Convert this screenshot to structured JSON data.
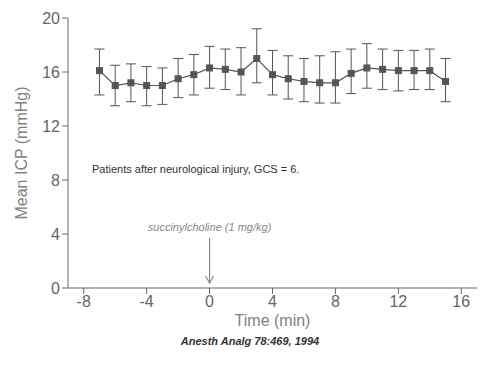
{
  "chart_data": {
    "type": "line",
    "x": [
      -7,
      -6,
      -5,
      -4,
      -3,
      -2,
      -1,
      0,
      1,
      2,
      3,
      4,
      5,
      6,
      7,
      8,
      9,
      10,
      11,
      12,
      13,
      14,
      15
    ],
    "values": [
      16.1,
      15.0,
      15.2,
      15.0,
      15.0,
      15.5,
      15.8,
      16.3,
      16.2,
      16.0,
      17.0,
      15.8,
      15.5,
      15.3,
      15.2,
      15.2,
      15.9,
      16.3,
      16.2,
      16.1,
      16.1,
      16.1,
      15.3
    ],
    "error_upper": [
      1.6,
      1.5,
      1.4,
      1.4,
      1.3,
      1.5,
      1.5,
      1.6,
      1.5,
      1.8,
      2.2,
      1.8,
      1.7,
      1.7,
      2.0,
      2.3,
      1.8,
      1.8,
      1.5,
      1.5,
      1.5,
      1.6,
      1.7
    ],
    "error_lower": [
      1.8,
      1.5,
      1.4,
      1.5,
      1.4,
      1.4,
      1.5,
      1.5,
      1.5,
      1.7,
      1.8,
      1.5,
      1.5,
      1.5,
      1.5,
      1.5,
      1.5,
      1.5,
      1.5,
      1.5,
      1.4,
      1.4,
      1.5
    ],
    "color": "#555555",
    "marker": "square",
    "line_style": "solid",
    "xlabel": "Time (min)",
    "ylabel": "Mean ICP (mmHg)",
    "xlim": [
      -9,
      17
    ],
    "ylim": [
      0,
      20
    ],
    "xticks": [
      -8,
      -4,
      0,
      4,
      8,
      12,
      16
    ],
    "yticks": [
      0,
      4,
      8,
      12,
      16,
      20
    ],
    "grid": false,
    "annotations": [
      {
        "text": "succinylcholine (1 mg/kg)",
        "x": 0,
        "color": "#888888"
      },
      {
        "text": "Patients after neurological injury, GCS = 6.",
        "color": "#333333"
      },
      {
        "text": "Anesth Analg 78:469, 1994",
        "color": "#333333"
      }
    ]
  }
}
